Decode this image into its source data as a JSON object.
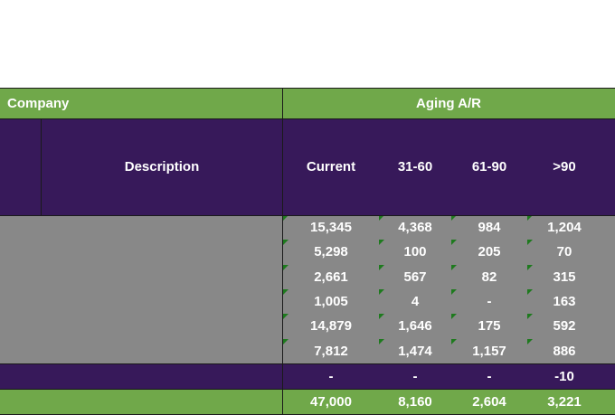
{
  "header": {
    "company_label": "Company",
    "aging_label": "Aging A/R"
  },
  "columns": {
    "description": "Description",
    "current": "Current",
    "d31_60": "31-60",
    "d61_90": "61-90",
    "over90": ">90"
  },
  "rows": [
    {
      "current": "15,345",
      "d31_60": "4,368",
      "d61_90": "984",
      "over90": "1,204"
    },
    {
      "current": "5,298",
      "d31_60": "100",
      "d61_90": "205",
      "over90": "70"
    },
    {
      "current": "2,661",
      "d31_60": "567",
      "d61_90": "82",
      "over90": "315"
    },
    {
      "current": "1,005",
      "d31_60": "4",
      "d61_90": "-",
      "over90": "163"
    },
    {
      "current": "14,879",
      "d31_60": "1,646",
      "d61_90": "175",
      "over90": "592"
    },
    {
      "current": "7,812",
      "d31_60": "1,474",
      "d61_90": "1,157",
      "over90": "886"
    }
  ],
  "adjustment_row": {
    "current": "-",
    "d31_60": "-",
    "d61_90": "-",
    "over90": "-10"
  },
  "total_row": {
    "current": "47,000",
    "d31_60": "8,160",
    "d61_90": "2,604",
    "over90": "3,221"
  },
  "colors": {
    "green": "#70a84a",
    "purple": "#37195a",
    "grey": "#888888",
    "error_marker": "#1e7a1e"
  }
}
